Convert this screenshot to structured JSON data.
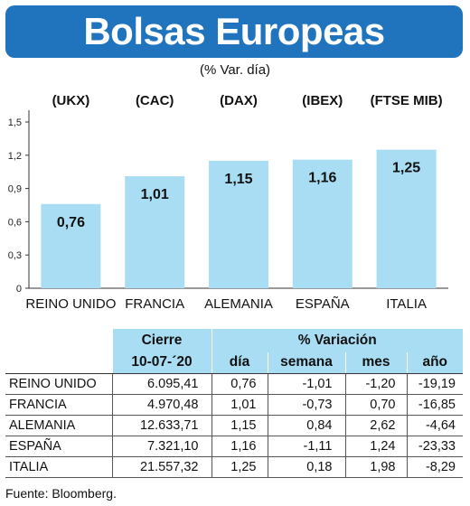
{
  "header": {
    "title": "Bolsas Europeas",
    "subtitle": "(% Var. día)"
  },
  "colors": {
    "title_bg": "#1f74bd",
    "bar_fill": "#a8ddf3",
    "table_header_bg": "#a8ddf3"
  },
  "chart_data": {
    "type": "bar",
    "index_labels": [
      "(UKX)",
      "(CAC)",
      "(DAX)",
      "(IBEX)",
      "(FTSE MIB)"
    ],
    "categories": [
      "REINO UNIDO",
      "FRANCIA",
      "ALEMANIA",
      "ESPAÑA",
      "ITALIA"
    ],
    "values": [
      0.76,
      1.01,
      1.15,
      1.16,
      1.25
    ],
    "value_labels": [
      "0,76",
      "1,01",
      "1,15",
      "1,16",
      "1,25"
    ],
    "yticks": [
      0,
      0.3,
      0.6,
      0.9,
      1.2,
      1.5
    ],
    "ytick_labels": [
      "0",
      "0,3",
      "0,6",
      "0,9",
      "1,2",
      "1,5"
    ],
    "ylim": [
      0,
      1.5
    ],
    "grid": false
  },
  "table": {
    "group_headers": {
      "close": "Cierre",
      "variation": "% Variación"
    },
    "sub_headers": {
      "date": "10-07-´20",
      "day": "día",
      "week": "semana",
      "month": "mes",
      "year": "año"
    },
    "rows": [
      {
        "name": "REINO UNIDO",
        "close": "6.095,41",
        "day": "0,76",
        "week": "-1,01",
        "month": "-1,20",
        "year": "-19,19"
      },
      {
        "name": "FRANCIA",
        "close": "4.970,48",
        "day": "1,01",
        "week": "-0,73",
        "month": "0,70",
        "year": "-16,85"
      },
      {
        "name": "ALEMANIA",
        "close": "12.633,71",
        "day": "1,15",
        "week": "0,84",
        "month": "2,62",
        "year": "-4,64"
      },
      {
        "name": "ESPAÑA",
        "close": "7.321,10",
        "day": "1,16",
        "week": "-1,11",
        "month": "1,24",
        "year": "-23,33"
      },
      {
        "name": "ITALIA",
        "close": "21.557,32",
        "day": "1,25",
        "week": "0,18",
        "month": "1,98",
        "year": "-8,29"
      }
    ]
  },
  "source": "Fuente: Bloomberg."
}
